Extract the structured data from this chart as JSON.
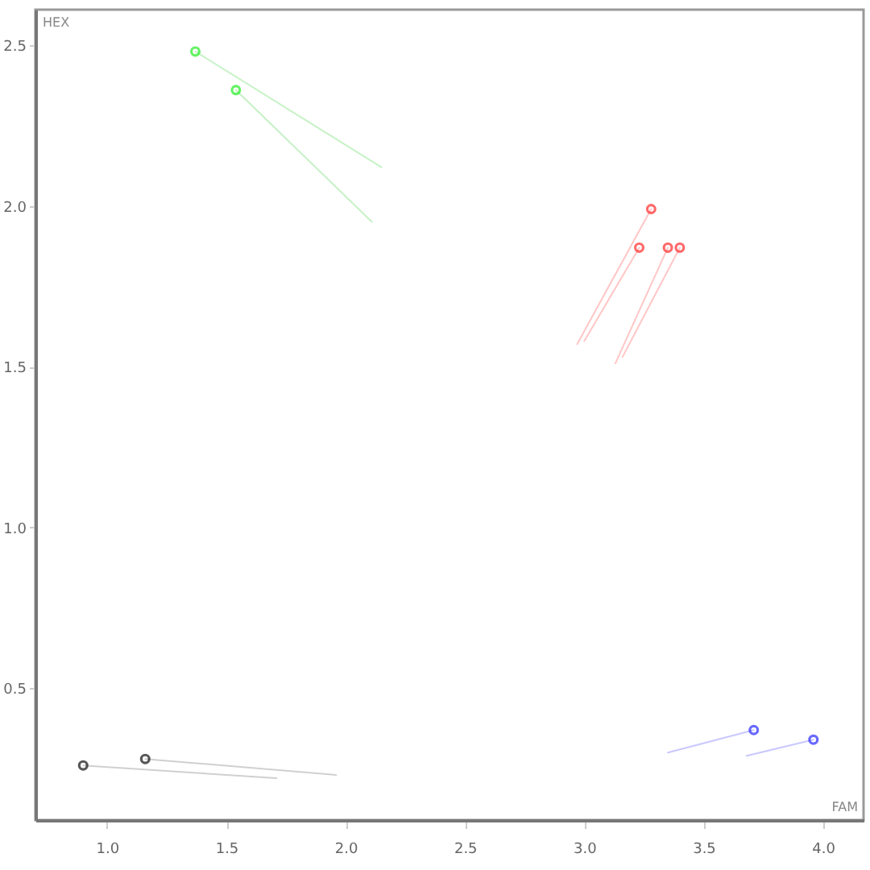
{
  "chart_data": {
    "type": "scatter",
    "xlabel": "FAM",
    "ylabel": "HEX",
    "xlim": [
      0.7,
      4.17
    ],
    "ylim": [
      0.09,
      2.61
    ],
    "xticks": [
      {
        "value": 1,
        "label": "1.0"
      },
      1.5,
      {
        "value": 2,
        "label": "2.0"
      },
      2.5,
      {
        "value": 3,
        "label": "3.0"
      },
      3.5,
      {
        "value": 4,
        "label": "4.0"
      }
    ],
    "yticks": [
      0.5,
      {
        "value": 1,
        "label": "1.0"
      },
      1.5,
      {
        "value": 2,
        "label": "2.0"
      },
      2.5
    ],
    "marker": "circle",
    "series": [
      {
        "type": "line",
        "marker": "none",
        "color": "#c6f2c6",
        "x": [
          1.37,
          2.15
        ],
        "values": [
          2.48,
          2.12
        ]
      },
      {
        "type": "line",
        "marker": "none",
        "color": "#c6f2c6",
        "x": [
          1.54,
          2.11
        ],
        "values": [
          2.36,
          1.95
        ]
      },
      {
        "type": "line",
        "marker": "none",
        "color": "#ffc6c6",
        "x": [
          3.28,
          2.97
        ],
        "values": [
          1.99,
          1.57
        ]
      },
      {
        "type": "line",
        "marker": "none",
        "color": "#ffc6c6",
        "x": [
          3.23,
          3.0
        ],
        "values": [
          1.87,
          1.58
        ]
      },
      {
        "type": "line",
        "marker": "none",
        "color": "#ffc6c6",
        "x": [
          3.35,
          3.13
        ],
        "values": [
          1.87,
          1.51
        ]
      },
      {
        "type": "line",
        "marker": "none",
        "color": "#ffc6c6",
        "x": [
          3.4,
          3.16
        ],
        "values": [
          1.87,
          1.53
        ]
      },
      {
        "type": "line",
        "marker": "none",
        "color": "#d0d0d0",
        "x": [
          0.9,
          1.71
        ],
        "values": [
          0.26,
          0.22
        ]
      },
      {
        "type": "line",
        "marker": "none",
        "color": "#d0d0d0",
        "x": [
          1.16,
          1.96
        ],
        "values": [
          0.28,
          0.23
        ]
      },
      {
        "type": "line",
        "marker": "none",
        "color": "#c8c8ff",
        "x": [
          3.71,
          3.35
        ],
        "values": [
          0.37,
          0.3
        ]
      },
      {
        "type": "line",
        "marker": "none",
        "color": "#c8c8ff",
        "x": [
          3.96,
          3.68
        ],
        "values": [
          0.34,
          0.29
        ]
      },
      {
        "color": "#22ee22",
        "x": [
          1.37,
          1.54
        ],
        "values": [
          2.48,
          2.36
        ]
      },
      {
        "color": "#ff2a2a",
        "x": [
          3.28,
          3.23,
          3.35,
          3.4
        ],
        "values": [
          1.99,
          1.87,
          1.87,
          1.87
        ]
      },
      {
        "color": "#111111",
        "x": [
          0.9,
          1.16
        ],
        "values": [
          0.26,
          0.28
        ]
      },
      {
        "color": "#2a2aff",
        "x": [
          3.71,
          3.96
        ],
        "values": [
          0.37,
          0.34
        ]
      }
    ]
  }
}
